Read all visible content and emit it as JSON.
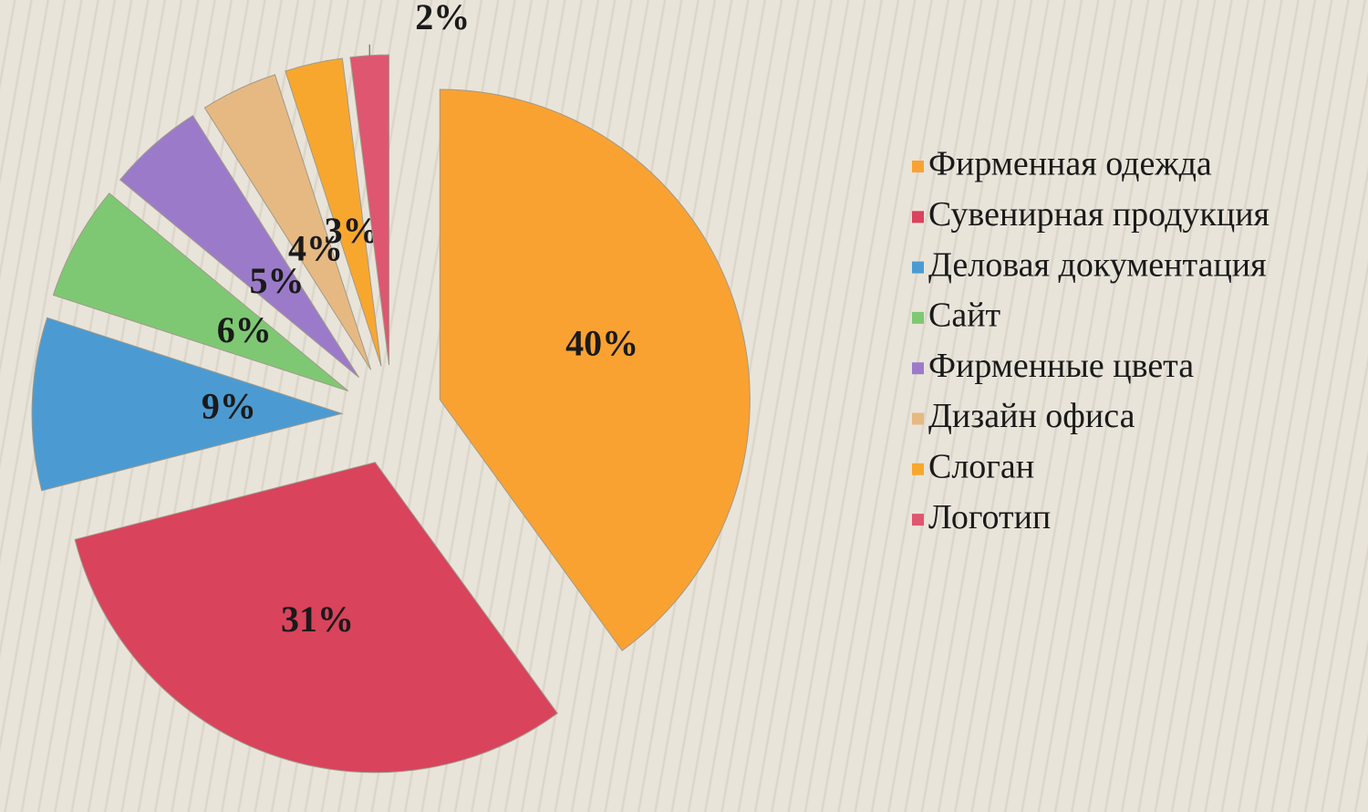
{
  "chart_data": {
    "type": "pie",
    "categories": [
      "Фирменная одежда",
      "Сувенирная продукция",
      "Деловая документация",
      "Сайт",
      "Фирменные цвета",
      "Дизайн офиса",
      "Слоган",
      "Логотип"
    ],
    "values": [
      40,
      31,
      9,
      6,
      5,
      4,
      3,
      2
    ],
    "value_labels": [
      "40%",
      "31%",
      "9%",
      "6%",
      "5%",
      "4%",
      "3%",
      "2%"
    ],
    "colors": [
      "#f9a232",
      "#d9435c",
      "#4b9bd2",
      "#7fc873",
      "#9b7bc9",
      "#e6b982",
      "#f8a72e",
      "#de5670"
    ],
    "legend": "right"
  }
}
